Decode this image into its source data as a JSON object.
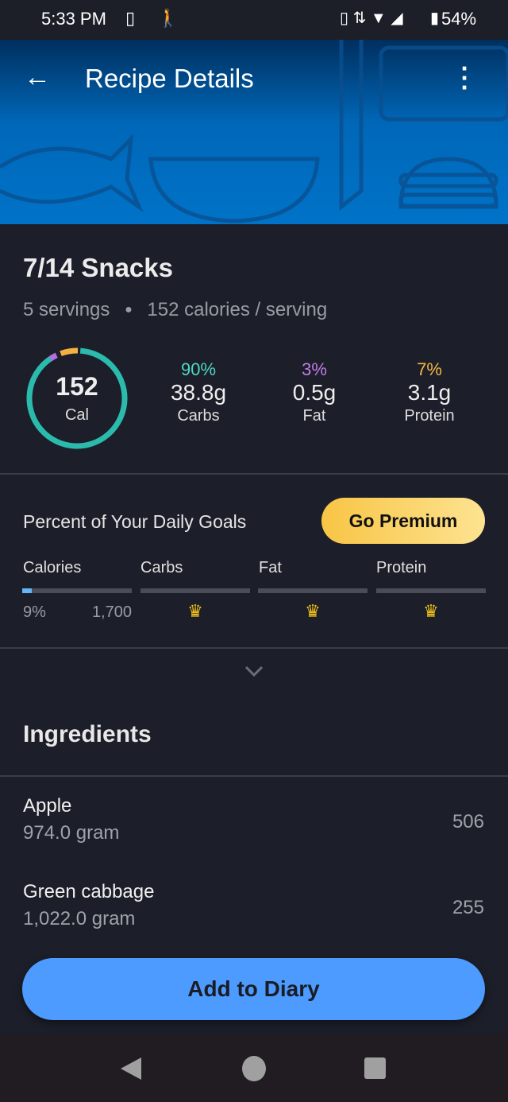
{
  "status_bar": {
    "time": "5:33 PM",
    "battery": "54%"
  },
  "header": {
    "title": "Recipe Details"
  },
  "recipe": {
    "name": "7/14 Snacks",
    "servings": "5 servings",
    "calories_per_serving": "152 calories / serving"
  },
  "calorie_ring": {
    "value": "152",
    "unit": "Cal",
    "colors": {
      "carbs": "#2bbbad",
      "fat": "#b46fe0",
      "protein": "#f5b042"
    }
  },
  "macros": [
    {
      "percent": "90%",
      "amount": "38.8g",
      "label": "Carbs",
      "color": "#4fd8c4"
    },
    {
      "percent": "3%",
      "amount": "0.5g",
      "label": "Fat",
      "color": "#c27ee6"
    },
    {
      "percent": "7%",
      "amount": "3.1g",
      "label": "Protein",
      "color": "#f5b845"
    }
  ],
  "daily_goals": {
    "title": "Percent of Your Daily Goals",
    "premium_label": "Go Premium",
    "columns": [
      {
        "label": "Calories",
        "percent": "9%",
        "goal": "1,700",
        "progress": 0.09
      },
      {
        "label": "Carbs",
        "locked": true
      },
      {
        "label": "Fat",
        "locked": true
      },
      {
        "label": "Protein",
        "locked": true
      }
    ]
  },
  "ingredients": {
    "title": "Ingredients",
    "items": [
      {
        "name": "Apple",
        "quantity": "974.0 gram",
        "calories": "506"
      },
      {
        "name": "Green cabbage",
        "quantity": "1,022.0 gram",
        "calories": "255"
      }
    ]
  },
  "add_button": "Add to Diary"
}
